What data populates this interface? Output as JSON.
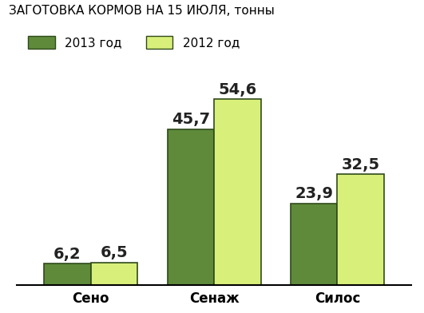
{
  "chart_data": {
    "type": "bar",
    "title": "ЗАГОТОВКА КОРМОВ НА 15 ИЮЛЯ, тонны",
    "categories": [
      "Сено",
      "Сенаж",
      "Силос"
    ],
    "series": [
      {
        "name": "2013 год",
        "color": "#5f8a3a",
        "values": [
          6.2,
          45.7,
          23.9
        ],
        "value_labels": [
          "6,2",
          "45,7",
          "23,9"
        ]
      },
      {
        "name": "2012 год",
        "color": "#d8f07a",
        "values": [
          6.5,
          54.6,
          32.5
        ],
        "value_labels": [
          "6,5",
          "54,6",
          "32,5"
        ]
      }
    ],
    "legend": "upper left",
    "data_labels": true,
    "tick_labels": "x",
    "grid": false
  }
}
